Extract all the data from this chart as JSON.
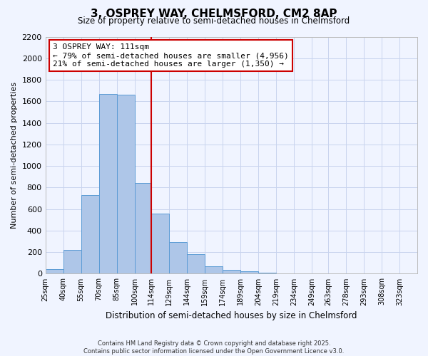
{
  "title": "3, OSPREY WAY, CHELMSFORD, CM2 8AP",
  "subtitle": "Size of property relative to semi-detached houses in Chelmsford",
  "xlabel": "Distribution of semi-detached houses by size in Chelmsford",
  "ylabel": "Number of semi-detached properties",
  "footer_line1": "Contains HM Land Registry data © Crown copyright and database right 2025.",
  "footer_line2": "Contains public sector information licensed under the Open Government Licence v3.0.",
  "bin_labels": [
    "25sqm",
    "40sqm",
    "55sqm",
    "70sqm",
    "85sqm",
    "100sqm",
    "114sqm",
    "129sqm",
    "144sqm",
    "159sqm",
    "174sqm",
    "189sqm",
    "204sqm",
    "219sqm",
    "234sqm",
    "249sqm",
    "263sqm",
    "278sqm",
    "293sqm",
    "308sqm",
    "323sqm"
  ],
  "bin_edges": [
    25,
    40,
    55,
    70,
    85,
    100,
    114,
    129,
    144,
    159,
    174,
    189,
    204,
    219,
    234,
    249,
    263,
    278,
    293,
    308,
    323,
    338
  ],
  "bar_heights": [
    40,
    220,
    730,
    1670,
    1660,
    845,
    560,
    295,
    180,
    70,
    35,
    20,
    10,
    5,
    0,
    0,
    0,
    0,
    0,
    0,
    0
  ],
  "bar_color": "#aec6e8",
  "bar_edge_color": "#5b9bd5",
  "property_line_x": 114,
  "annotation_title": "3 OSPREY WAY: 111sqm",
  "annotation_line1": "← 79% of semi-detached houses are smaller (4,956)",
  "annotation_line2": "21% of semi-detached houses are larger (1,350) →",
  "vline_color": "#cc0000",
  "ylim": [
    0,
    2200
  ],
  "yticks": [
    0,
    200,
    400,
    600,
    800,
    1000,
    1200,
    1400,
    1600,
    1800,
    2000,
    2200
  ],
  "bg_color": "#f0f4ff",
  "grid_color": "#c8d4ee"
}
